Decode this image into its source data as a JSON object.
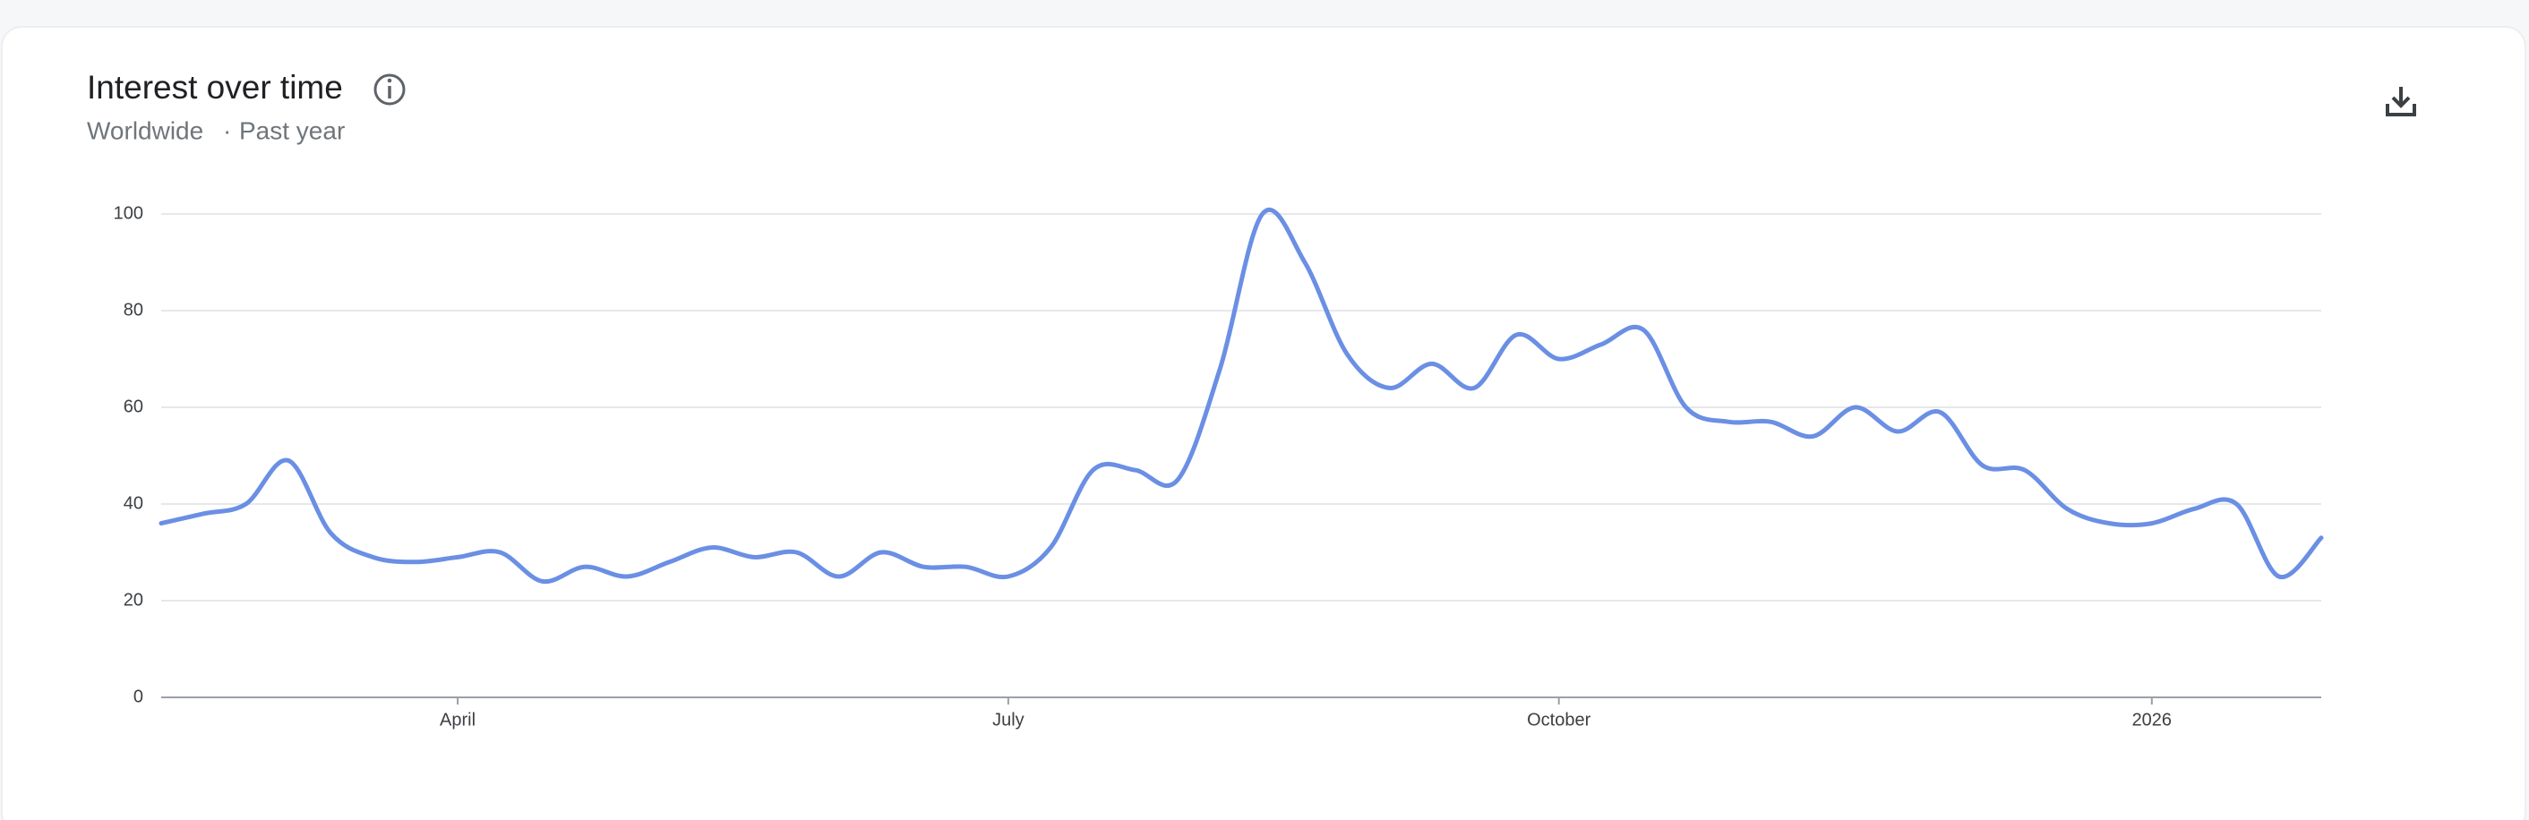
{
  "chart_data": {
    "type": "line",
    "title": "Interest over time",
    "subtitle": [
      "Worldwide",
      "·",
      "Past year"
    ],
    "categories": [
      null,
      null,
      null,
      null,
      null,
      null,
      null,
      "April",
      null,
      null,
      null,
      null,
      null,
      null,
      null,
      null,
      null,
      null,
      null,
      null,
      "July",
      null,
      null,
      null,
      null,
      null,
      null,
      null,
      null,
      null,
      null,
      null,
      null,
      "October",
      null,
      null,
      null,
      null,
      null,
      null,
      null,
      null,
      null,
      null,
      null,
      null,
      null,
      "2026",
      null,
      null,
      null,
      null
    ],
    "series": [
      {
        "name": "Interest",
        "color": "#6a8fe4",
        "values": [
          36,
          38,
          40,
          49,
          34,
          29,
          28,
          29,
          30,
          24,
          27,
          25,
          28,
          31,
          29,
          30,
          25,
          30,
          27,
          27,
          25,
          31,
          47,
          47,
          45,
          68,
          100,
          90,
          71,
          64,
          69,
          64,
          75,
          70,
          73,
          76,
          60,
          57,
          57,
          54,
          60,
          55,
          59,
          48,
          47,
          39,
          36,
          36,
          39,
          40,
          25,
          33
        ]
      }
    ],
    "ylim": [
      0,
      100
    ],
    "yticks": [
      0,
      20,
      40,
      60,
      80,
      100
    ],
    "grid": true
  }
}
